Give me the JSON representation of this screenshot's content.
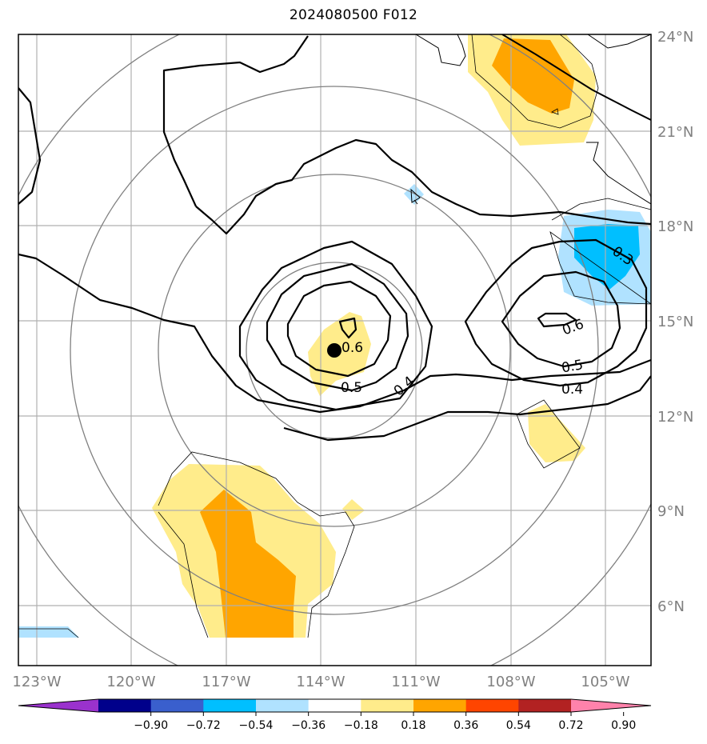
{
  "title": "2024080500 F012",
  "map": {
    "lat_labels": [
      "24°N",
      "21°N",
      "18°N",
      "15°N",
      "12°N",
      "9°N",
      "6°N"
    ],
    "lon_labels": [
      "123°W",
      "120°W",
      "117°W",
      "114°W",
      "111°W",
      "108°W",
      "105°W"
    ],
    "contour_labels": [
      "0.6",
      "0.5",
      "0.4",
      "0.6",
      "0.5",
      "0.4",
      "0.3"
    ],
    "center_marker": "storm-center-dot"
  },
  "colorbar": {
    "ticks": [
      "−0.90",
      "−0.72",
      "−0.54",
      "−0.36",
      "−0.18",
      "0.18",
      "0.36",
      "0.54",
      "0.72",
      "0.90"
    ],
    "colors": [
      "#9a32cd",
      "#00008b",
      "#3a5fcd",
      "#00bfff",
      "#b0e2ff",
      "#ffffff",
      "#ffec8b",
      "#ffa500",
      "#ff4500",
      "#b22222",
      "#ff82ab"
    ]
  },
  "fill_colors": {
    "pos_low": "#ffec8b",
    "pos_mid": "#ffa500",
    "neg_low": "#b0e2ff",
    "neg_mid": "#00bfff"
  }
}
